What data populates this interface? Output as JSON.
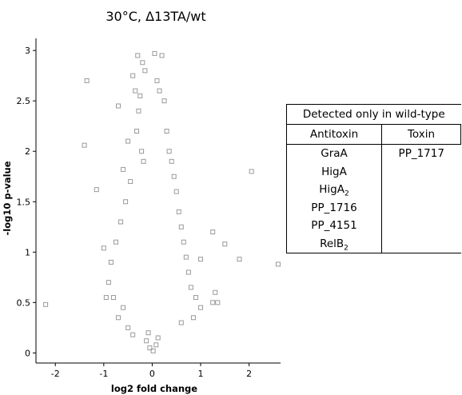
{
  "chart_data": {
    "type": "scatter",
    "title": "30°C, Δ13TA/wt",
    "xlabel": "log2 fold change",
    "ylabel": "-log10 p-value",
    "xlim": [
      -2.4,
      2.65
    ],
    "ylim": [
      -0.1,
      3.12
    ],
    "x_ticks": [
      -2,
      -1,
      0,
      1,
      2
    ],
    "y_ticks": [
      0,
      0.5,
      1,
      1.5,
      2,
      2.5,
      3
    ],
    "grid": false,
    "marker": "open-square",
    "marker_color": "#9a9a9a",
    "points": [
      [
        -2.2,
        0.48
      ],
      [
        -1.4,
        2.06
      ],
      [
        -1.35,
        2.7
      ],
      [
        -1.15,
        1.62
      ],
      [
        -1.0,
        1.04
      ],
      [
        -0.8,
        0.55
      ],
      [
        -0.7,
        2.45
      ],
      [
        -0.6,
        1.82
      ],
      [
        -0.5,
        2.1
      ],
      [
        -0.4,
        2.75
      ],
      [
        -0.35,
        2.6
      ],
      [
        -0.3,
        2.95
      ],
      [
        -0.25,
        2.55
      ],
      [
        -0.2,
        2.88
      ],
      [
        -0.15,
        2.8
      ],
      [
        -0.28,
        2.4
      ],
      [
        -0.32,
        2.2
      ],
      [
        -0.22,
        2.0
      ],
      [
        -0.18,
        1.9
      ],
      [
        -0.45,
        1.7
      ],
      [
        -0.55,
        1.5
      ],
      [
        -0.65,
        1.3
      ],
      [
        -0.75,
        1.1
      ],
      [
        -0.85,
        0.9
      ],
      [
        -0.9,
        0.7
      ],
      [
        -0.95,
        0.55
      ],
      [
        -0.6,
        0.45
      ],
      [
        -0.7,
        0.35
      ],
      [
        -0.5,
        0.25
      ],
      [
        -0.4,
        0.18
      ],
      [
        0.05,
        2.97
      ],
      [
        0.2,
        2.95
      ],
      [
        0.1,
        2.7
      ],
      [
        0.15,
        2.6
      ],
      [
        0.25,
        2.5
      ],
      [
        0.3,
        2.2
      ],
      [
        0.35,
        2.0
      ],
      [
        0.4,
        1.9
      ],
      [
        0.45,
        1.75
      ],
      [
        0.5,
        1.6
      ],
      [
        0.55,
        1.4
      ],
      [
        0.6,
        1.25
      ],
      [
        0.65,
        1.1
      ],
      [
        0.7,
        0.95
      ],
      [
        0.75,
        0.8
      ],
      [
        0.8,
        0.65
      ],
      [
        0.9,
        0.55
      ],
      [
        1.0,
        0.45
      ],
      [
        0.85,
        0.35
      ],
      [
        0.6,
        0.3
      ],
      [
        1.0,
        0.93
      ],
      [
        1.25,
        1.2
      ],
      [
        1.3,
        0.6
      ],
      [
        1.25,
        0.5
      ],
      [
        1.35,
        0.5
      ],
      [
        1.5,
        1.08
      ],
      [
        1.8,
        0.93
      ],
      [
        2.05,
        1.8
      ],
      [
        2.6,
        0.88
      ],
      [
        0.12,
        0.15
      ],
      [
        -0.12,
        0.12
      ],
      [
        0.02,
        0.02
      ],
      [
        -0.05,
        0.05
      ],
      [
        0.08,
        0.08
      ],
      [
        -0.08,
        0.2
      ]
    ]
  }
}
